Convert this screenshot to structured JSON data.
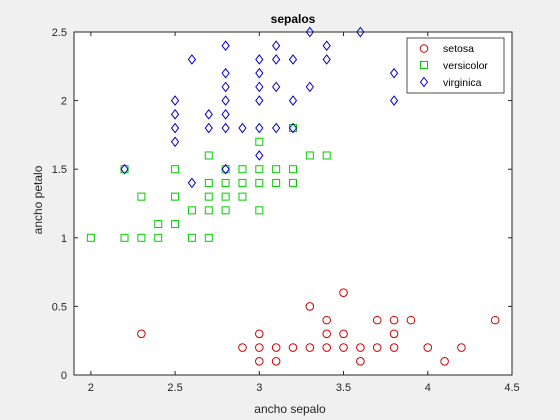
{
  "chart_data": {
    "type": "scatter",
    "title": "sepalos",
    "xlabel": "ancho sepalo",
    "ylabel": "ancho petalo",
    "xlim": [
      1.9,
      4.5
    ],
    "ylim": [
      0,
      2.5
    ],
    "xticks": [
      2,
      2.5,
      3,
      3.5,
      4,
      4.5
    ],
    "yticks": [
      0,
      0.5,
      1,
      1.5,
      2,
      2.5
    ],
    "grid": false,
    "legend_position": "top-right",
    "series": [
      {
        "name": "setosa",
        "marker": "circle",
        "color": "#cc0000",
        "points": [
          [
            2.3,
            0.3
          ],
          [
            2.9,
            0.2
          ],
          [
            3.0,
            0.1
          ],
          [
            3.0,
            0.2
          ],
          [
            3.0,
            0.3
          ],
          [
            3.1,
            0.1
          ],
          [
            3.1,
            0.2
          ],
          [
            3.2,
            0.2
          ],
          [
            3.3,
            0.2
          ],
          [
            3.3,
            0.5
          ],
          [
            3.4,
            0.2
          ],
          [
            3.4,
            0.3
          ],
          [
            3.4,
            0.4
          ],
          [
            3.5,
            0.2
          ],
          [
            3.5,
            0.3
          ],
          [
            3.5,
            0.6
          ],
          [
            3.6,
            0.1
          ],
          [
            3.6,
            0.2
          ],
          [
            3.7,
            0.2
          ],
          [
            3.7,
            0.4
          ],
          [
            3.8,
            0.2
          ],
          [
            3.8,
            0.3
          ],
          [
            3.8,
            0.4
          ],
          [
            3.9,
            0.4
          ],
          [
            4.0,
            0.2
          ],
          [
            4.1,
            0.1
          ],
          [
            4.2,
            0.2
          ],
          [
            4.4,
            0.4
          ]
        ]
      },
      {
        "name": "versicolor",
        "marker": "square",
        "color": "#00cc00",
        "points": [
          [
            2.0,
            1.0
          ],
          [
            2.2,
            1.0
          ],
          [
            2.2,
            1.5
          ],
          [
            2.3,
            1.0
          ],
          [
            2.3,
            1.3
          ],
          [
            2.4,
            1.0
          ],
          [
            2.4,
            1.1
          ],
          [
            2.5,
            1.1
          ],
          [
            2.5,
            1.3
          ],
          [
            2.5,
            1.5
          ],
          [
            2.6,
            1.0
          ],
          [
            2.6,
            1.2
          ],
          [
            2.7,
            1.0
          ],
          [
            2.7,
            1.2
          ],
          [
            2.7,
            1.3
          ],
          [
            2.7,
            1.4
          ],
          [
            2.7,
            1.6
          ],
          [
            2.8,
            1.2
          ],
          [
            2.8,
            1.3
          ],
          [
            2.8,
            1.4
          ],
          [
            2.8,
            1.5
          ],
          [
            2.9,
            1.3
          ],
          [
            2.9,
            1.4
          ],
          [
            2.9,
            1.5
          ],
          [
            3.0,
            1.2
          ],
          [
            3.0,
            1.4
          ],
          [
            3.0,
            1.5
          ],
          [
            3.0,
            1.7
          ],
          [
            3.1,
            1.4
          ],
          [
            3.1,
            1.5
          ],
          [
            3.2,
            1.4
          ],
          [
            3.2,
            1.5
          ],
          [
            3.2,
            1.8
          ],
          [
            3.3,
            1.6
          ],
          [
            3.4,
            1.6
          ]
        ]
      },
      {
        "name": "virginica",
        "marker": "diamond",
        "color": "#0000cc",
        "points": [
          [
            2.2,
            1.5
          ],
          [
            2.5,
            1.7
          ],
          [
            2.5,
            1.8
          ],
          [
            2.5,
            1.9
          ],
          [
            2.5,
            2.0
          ],
          [
            2.6,
            1.4
          ],
          [
            2.6,
            2.3
          ],
          [
            2.7,
            1.8
          ],
          [
            2.7,
            1.9
          ],
          [
            2.8,
            1.5
          ],
          [
            2.8,
            1.8
          ],
          [
            2.8,
            1.9
          ],
          [
            2.8,
            2.0
          ],
          [
            2.8,
            2.1
          ],
          [
            2.8,
            2.2
          ],
          [
            2.8,
            2.4
          ],
          [
            2.9,
            1.8
          ],
          [
            3.0,
            1.6
          ],
          [
            3.0,
            1.8
          ],
          [
            3.0,
            2.0
          ],
          [
            3.0,
            2.1
          ],
          [
            3.0,
            2.2
          ],
          [
            3.0,
            2.3
          ],
          [
            3.1,
            1.8
          ],
          [
            3.1,
            2.1
          ],
          [
            3.1,
            2.3
          ],
          [
            3.1,
            2.4
          ],
          [
            3.2,
            1.8
          ],
          [
            3.2,
            2.0
          ],
          [
            3.2,
            2.3
          ],
          [
            3.3,
            2.1
          ],
          [
            3.3,
            2.5
          ],
          [
            3.4,
            2.3
          ],
          [
            3.4,
            2.4
          ],
          [
            3.6,
            2.5
          ],
          [
            3.8,
            2.0
          ],
          [
            3.8,
            2.2
          ]
        ]
      }
    ]
  }
}
